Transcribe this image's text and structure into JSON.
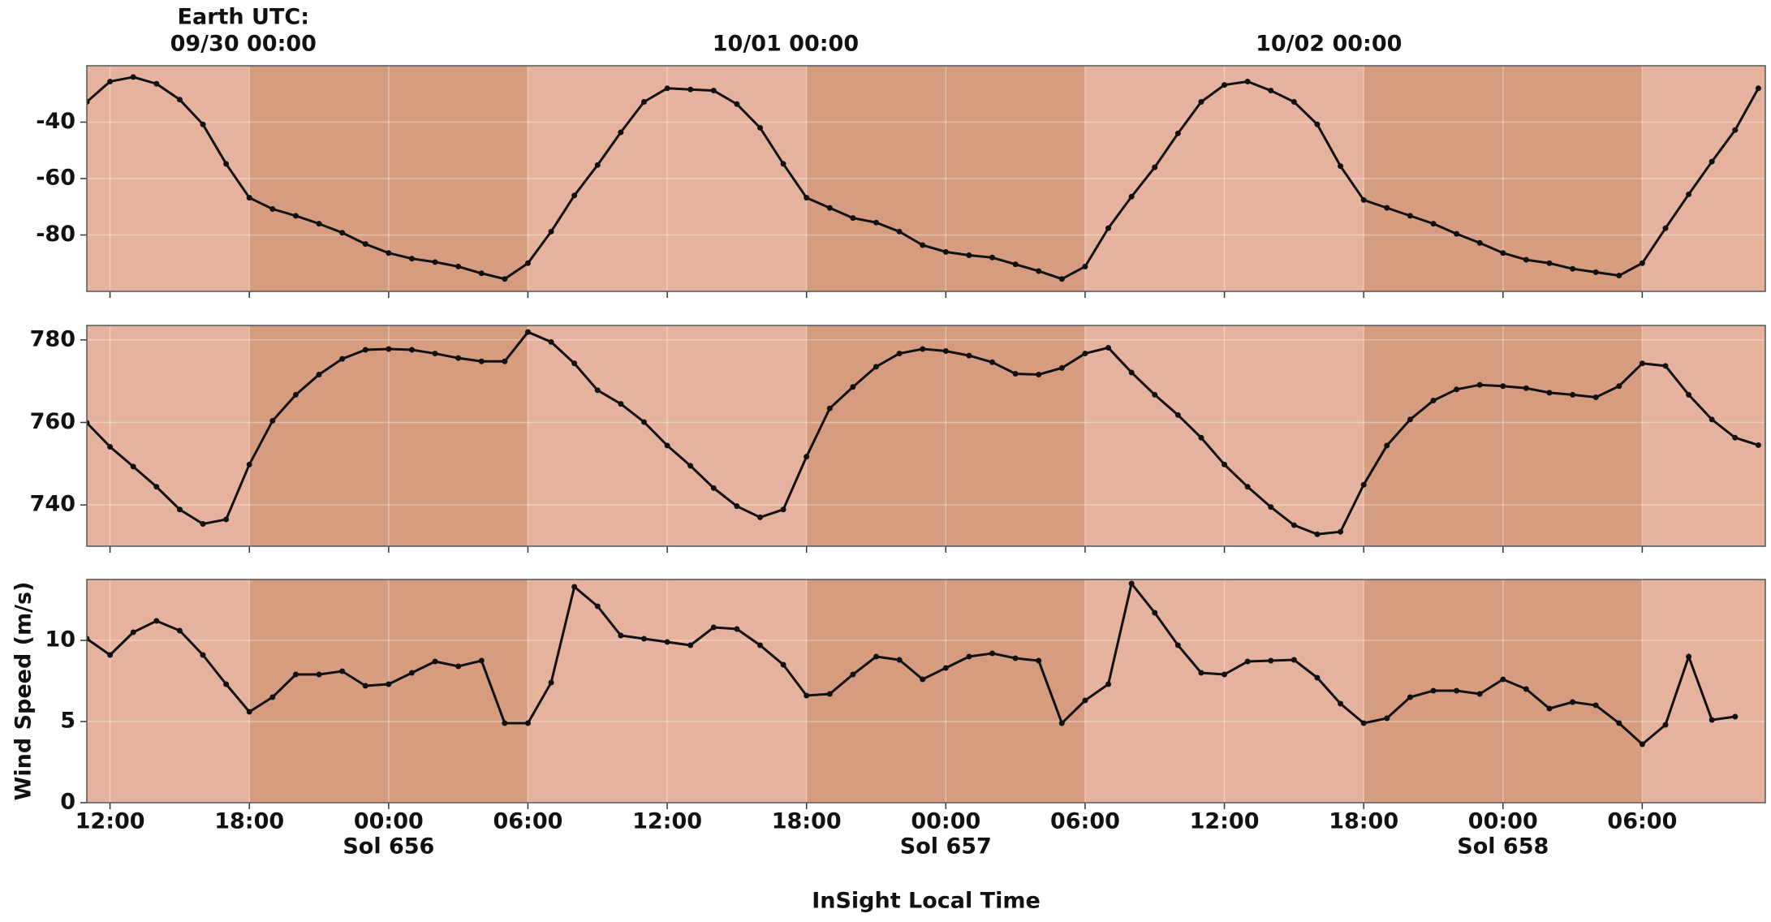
{
  "chart_data": [
    {
      "type": "line",
      "color": "#111111",
      "top_label": "Earth UTC:",
      "top_ticks": [
        {
          "value": 17.74,
          "label": "09/30 00:00"
        },
        {
          "value": 41.1,
          "label": "10/01 00:00"
        },
        {
          "value": 64.5,
          "label": "10/02 00:00"
        }
      ],
      "x": [
        11,
        12,
        13,
        14,
        15,
        16,
        17,
        18,
        19,
        20,
        21,
        22,
        23,
        24,
        25,
        26,
        27,
        28,
        29,
        30,
        31,
        32,
        33,
        34,
        35,
        36,
        37,
        38,
        39,
        40,
        41,
        42,
        43,
        44,
        45,
        46,
        47,
        48,
        49,
        50,
        51,
        52,
        53,
        54,
        55,
        56,
        57,
        58,
        59,
        60,
        61,
        62,
        63,
        64,
        65,
        66,
        67,
        68,
        69,
        70,
        71,
        72,
        73,
        74,
        75,
        76,
        77,
        78,
        79,
        80,
        81,
        82,
        83
      ],
      "values": [
        -32.8,
        -25.6,
        -24,
        -26.4,
        -32,
        -40.8,
        -54.8,
        -66.8,
        -70.8,
        -73.2,
        -76,
        -79.2,
        -83.2,
        -86.4,
        -88.4,
        -89.6,
        -91.2,
        -93.6,
        -95.6,
        -90,
        -78.8,
        -66,
        -55.2,
        -43.6,
        -32.8,
        -28,
        -28.4,
        -28.8,
        -33.6,
        -42,
        -54.8,
        -66.8,
        -70.4,
        -74,
        -75.6,
        -78.8,
        -83.6,
        -86,
        -87.2,
        -88,
        -90.4,
        -92.8,
        -95.6,
        -91.2,
        -77.6,
        -66.4,
        -56,
        -44,
        -32.8,
        -26.8,
        -25.6,
        -28.8,
        -32.8,
        -40.8,
        -55.6,
        -67.6,
        -70.4,
        -73.2,
        -76,
        -79.6,
        -82.8,
        -86.4,
        -88.8,
        -90,
        -92,
        -93.2,
        -94.4,
        -90,
        -77.6,
        -65.6,
        -54,
        -42.8,
        -28
      ],
      "xlim": [
        11,
        83.3
      ],
      "xticks": [
        12,
        18,
        24,
        30,
        36,
        42,
        48,
        54,
        60,
        66,
        72,
        78
      ],
      "ylim": [
        -100,
        -20
      ],
      "yticks": [
        -40,
        -60,
        -80
      ],
      "grid": true,
      "background": "#e5b39d",
      "night_color": "#d69c80",
      "night_spans": [
        [
          18,
          30
        ],
        [
          42,
          54
        ],
        [
          66,
          78
        ]
      ]
    },
    {
      "type": "line",
      "color": "#111111",
      "x": [
        11,
        12,
        13,
        14,
        15,
        16,
        17,
        18,
        19,
        20,
        21,
        22,
        23,
        24,
        25,
        26,
        27,
        28,
        29,
        30,
        31,
        32,
        33,
        34,
        35,
        36,
        37,
        38,
        39,
        40,
        41,
        42,
        43,
        44,
        45,
        46,
        47,
        48,
        49,
        50,
        51,
        52,
        53,
        54,
        55,
        56,
        57,
        58,
        59,
        60,
        61,
        62,
        63,
        64,
        65,
        66,
        67,
        68,
        69,
        70,
        71,
        72,
        73,
        74,
        75,
        76,
        77,
        78,
        79,
        80,
        81,
        82,
        83
      ],
      "values": [
        759.9,
        754.1,
        749.3,
        744.4,
        738.9,
        735.4,
        736.5,
        749.8,
        760.4,
        766.7,
        771.6,
        775.4,
        777.6,
        777.8,
        777.6,
        776.7,
        775.6,
        774.8,
        774.8,
        781.9,
        779.5,
        774.3,
        767.8,
        764.5,
        760.1,
        754.4,
        749.5,
        744.1,
        739.7,
        737.0,
        738.9,
        751.7,
        763.4,
        768.6,
        773.5,
        776.7,
        777.8,
        777.3,
        776.2,
        774.6,
        771.8,
        771.6,
        773.2,
        776.7,
        778.1,
        772.1,
        766.7,
        761.8,
        756.3,
        749.8,
        744.4,
        739.5,
        735.1,
        732.9,
        733.5,
        744.9,
        754.4,
        760.7,
        765.3,
        768.0,
        769.1,
        768.8,
        768.3,
        767.2,
        766.7,
        766.1,
        768.8,
        774.3,
        773.7,
        766.7,
        760.7,
        756.3,
        754.5
      ],
      "xlim": [
        11,
        83.3
      ],
      "xticks": [
        12,
        18,
        24,
        30,
        36,
        42,
        48,
        54,
        60,
        66,
        72,
        78
      ],
      "ylim": [
        730,
        783.5
      ],
      "yticks": [
        740,
        760,
        780
      ],
      "grid": true,
      "background": "#e5b39d",
      "night_color": "#d69c80",
      "night_spans": [
        [
          18,
          30
        ],
        [
          42,
          54
        ],
        [
          66,
          78
        ]
      ]
    },
    {
      "type": "line",
      "color": "#111111",
      "xlabel": "InSight Local Time",
      "ylabel": "Wind Speed (m/s)",
      "x": [
        11,
        12,
        13,
        14,
        15,
        16,
        17,
        18,
        19,
        20,
        21,
        22,
        23,
        24,
        25,
        26,
        27,
        28,
        29,
        30,
        31,
        32,
        33,
        34,
        35,
        36,
        37,
        38,
        39,
        40,
        41,
        42,
        43,
        44,
        45,
        46,
        47,
        48,
        49,
        50,
        51,
        52,
        53,
        54,
        55,
        56,
        57,
        58,
        59,
        60,
        61,
        62,
        63,
        64,
        65,
        66,
        67,
        68,
        69,
        70,
        71,
        72,
        73,
        74,
        75,
        76,
        77,
        78,
        79,
        80,
        81,
        82
      ],
      "values": [
        10.1,
        9.1,
        10.5,
        11.2,
        10.6,
        9.1,
        7.3,
        5.6,
        6.5,
        7.9,
        7.9,
        8.1,
        7.2,
        7.3,
        8.0,
        8.7,
        8.4,
        8.75,
        4.9,
        4.9,
        7.4,
        13.3,
        12.1,
        10.3,
        10.1,
        9.9,
        9.7,
        10.8,
        10.7,
        9.7,
        8.5,
        6.6,
        6.7,
        7.9,
        9.0,
        8.8,
        7.6,
        8.3,
        9.0,
        9.2,
        8.9,
        8.75,
        4.9,
        6.3,
        7.3,
        13.5,
        11.7,
        9.7,
        8.0,
        7.9,
        8.7,
        8.75,
        8.8,
        7.7,
        6.1,
        4.9,
        5.2,
        6.5,
        6.9,
        6.9,
        6.7,
        7.6,
        7.0,
        5.8,
        6.2,
        6.0,
        4.9,
        3.6,
        4.8,
        9.0,
        5.1,
        5.3
      ],
      "xlim": [
        11,
        83.3
      ],
      "xticks": [
        {
          "value": 12,
          "label": "12:00"
        },
        {
          "value": 18,
          "label": "18:00"
        },
        {
          "value": 24,
          "label": "00:00"
        },
        {
          "value": 30,
          "label": "06:00"
        },
        {
          "value": 36,
          "label": "12:00"
        },
        {
          "value": 42,
          "label": "18:00"
        },
        {
          "value": 48,
          "label": "00:00"
        },
        {
          "value": 54,
          "label": "06:00"
        },
        {
          "value": 60,
          "label": "12:00"
        },
        {
          "value": 66,
          "label": "18:00"
        },
        {
          "value": 72,
          "label": "00:00"
        },
        {
          "value": 78,
          "label": "06:00"
        }
      ],
      "sol_labels": [
        {
          "value": 24,
          "label": "Sol 656"
        },
        {
          "value": 48,
          "label": "Sol 657"
        },
        {
          "value": 72,
          "label": "Sol 658"
        }
      ],
      "ylim": [
        0,
        13.75
      ],
      "yticks": [
        0,
        5,
        10
      ],
      "grid": true,
      "background": "#e5b39d",
      "night_color": "#d69c80",
      "night_spans": [
        [
          18,
          30
        ],
        [
          42,
          54
        ],
        [
          66,
          78
        ]
      ]
    }
  ]
}
